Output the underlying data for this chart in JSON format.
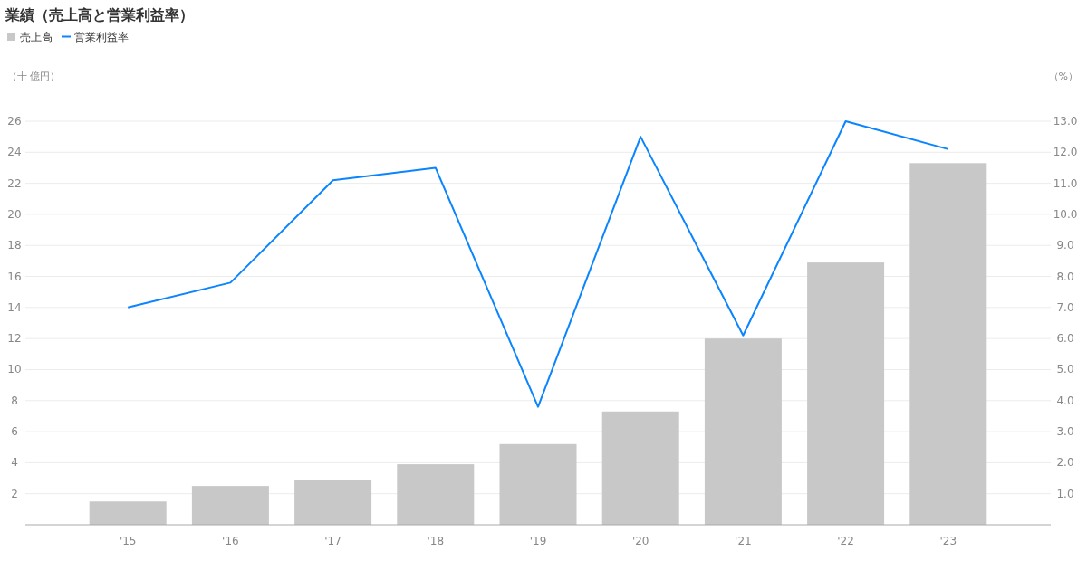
{
  "chart_data": {
    "type": "bar",
    "title": "業績（売上高と営業利益率）",
    "categories": [
      "'15",
      "'16",
      "'17",
      "'18",
      "'19",
      "'20",
      "'21",
      "'22",
      "'23"
    ],
    "series": [
      {
        "name": "売上高",
        "color": "#c8c8c8",
        "values": [
          1.5,
          2.5,
          2.9,
          3.9,
          5.2,
          7.3,
          12.0,
          16.9,
          23.3
        ]
      },
      {
        "name": "営業利益率",
        "type": "line",
        "axis": "y2",
        "color": "#0a84ff",
        "values": [
          7.0,
          7.8,
          11.1,
          11.5,
          3.8,
          12.5,
          6.1,
          13.0,
          12.1
        ]
      }
    ],
    "ylim": [
      0,
      26
    ],
    "yticks": [
      2,
      4,
      6,
      8,
      10,
      12,
      14,
      16,
      18,
      20,
      22,
      24,
      26
    ],
    "y2lim": [
      0,
      13
    ],
    "y2ticks": [
      {
        "value": 1,
        "label": "1.0"
      },
      {
        "value": 2,
        "label": "2.0"
      },
      {
        "value": 3,
        "label": "3.0"
      },
      {
        "value": 4,
        "label": "4.0"
      },
      {
        "value": 5,
        "label": "5.0"
      },
      {
        "value": 6,
        "label": "6.0"
      },
      {
        "value": 7,
        "label": "7.0"
      },
      {
        "value": 8,
        "label": "8.0"
      },
      {
        "value": 9,
        "label": "9.0"
      },
      {
        "value": 10,
        "label": "10.0"
      },
      {
        "value": 11,
        "label": "11.0"
      },
      {
        "value": 12,
        "label": "12.0"
      },
      {
        "value": 13,
        "label": "13.0"
      }
    ],
    "grid": "y",
    "legend": "top left",
    "annotations": [
      "（十 億円）",
      "（%）"
    ]
  }
}
